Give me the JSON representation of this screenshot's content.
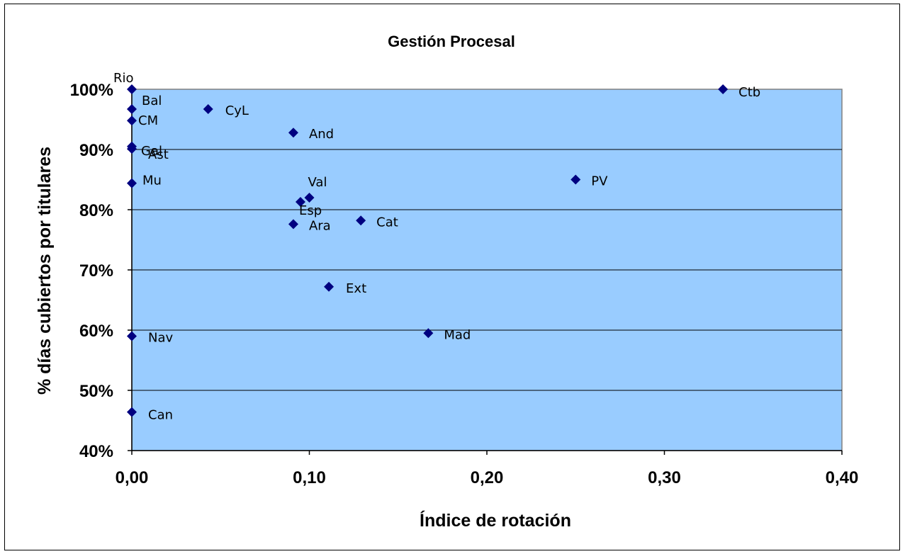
{
  "chart_data": {
    "type": "scatter",
    "title": "Gestión Procesal",
    "xlabel": "Índice de rotación",
    "ylabel": "% días cubiertos por titulares",
    "xlim": [
      0,
      0.4
    ],
    "ylim": [
      40,
      100
    ],
    "x_ticks": [
      0,
      0.1,
      0.2,
      0.3,
      0.4
    ],
    "x_tick_labels": [
      "0,00",
      "0,10",
      "0,20",
      "0,30",
      "0,40"
    ],
    "y_ticks": [
      40,
      50,
      60,
      70,
      80,
      90,
      100
    ],
    "y_tick_labels": [
      "40%",
      "50%",
      "60%",
      "70%",
      "80%",
      "90%",
      "100%"
    ],
    "grid": "horizontal",
    "legend": "none",
    "colors": {
      "plot_bg": "#99ccff",
      "marker": "#000080",
      "grid": "#000000",
      "plot_border": "#808080"
    },
    "points": [
      {
        "label": "Rio",
        "x": 0.0,
        "y": 100.0
      },
      {
        "label": "Bal",
        "x": 0.0,
        "y": 96.7
      },
      {
        "label": "CM",
        "x": 0.0,
        "y": 94.8
      },
      {
        "label": "Gal",
        "x": 0.0,
        "y": 90.5
      },
      {
        "label": "Ast",
        "x": 0.0,
        "y": 90.1
      },
      {
        "label": "Mu",
        "x": 0.0,
        "y": 84.4
      },
      {
        "label": "Nav",
        "x": 0.0,
        "y": 59.0
      },
      {
        "label": "Can",
        "x": 0.0,
        "y": 46.4
      },
      {
        "label": "CyL",
        "x": 0.043,
        "y": 96.7
      },
      {
        "label": "And",
        "x": 0.091,
        "y": 92.8
      },
      {
        "label": "Val",
        "x": 0.1,
        "y": 82.0
      },
      {
        "label": "Esp",
        "x": 0.095,
        "y": 81.3
      },
      {
        "label": "Ara",
        "x": 0.091,
        "y": 77.6
      },
      {
        "label": "Cat",
        "x": 0.129,
        "y": 78.2
      },
      {
        "label": "Ext",
        "x": 0.111,
        "y": 67.2
      },
      {
        "label": "Mad",
        "x": 0.167,
        "y": 59.5
      },
      {
        "label": "PV",
        "x": 0.25,
        "y": 85.0
      },
      {
        "label": "Ctb",
        "x": 0.333,
        "y": 100.0
      }
    ]
  }
}
